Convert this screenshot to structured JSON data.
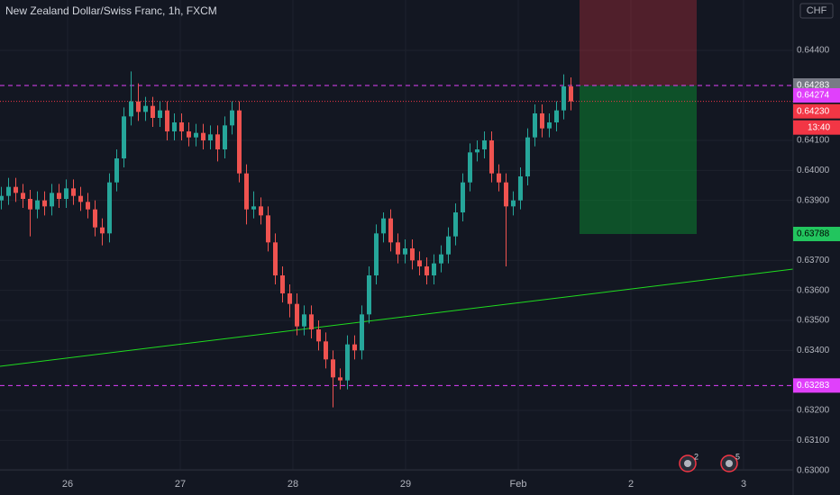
{
  "chart_data": {
    "type": "candlestick",
    "title": "New Zealand Dollar/Swiss Franc, 1h, FXCM",
    "currency": "CHF",
    "up_color": "#26a69a",
    "down_color": "#ef5350",
    "ylim": [
      0.63002,
      0.64568
    ],
    "yticks": [
      {
        "value": 0.63,
        "label": "0.63000"
      },
      {
        "value": 0.631,
        "label": "0.63100"
      },
      {
        "value": 0.632,
        "label": "0.63200"
      },
      {
        "value": 0.634,
        "label": "0.63400"
      },
      {
        "value": 0.635,
        "label": "0.63500"
      },
      {
        "value": 0.636,
        "label": "0.63600"
      },
      {
        "value": 0.637,
        "label": "0.63700"
      },
      {
        "value": 0.639,
        "label": "0.63900"
      },
      {
        "value": 0.64,
        "label": "0.64000"
      },
      {
        "value": 0.641,
        "label": "0.64100"
      },
      {
        "value": 0.644,
        "label": "0.64400"
      }
    ],
    "grid": true,
    "day_labels": [
      "26",
      "27",
      "28",
      "29",
      "Feb",
      "2",
      "3"
    ],
    "open": [
      0.639,
      0.63915,
      0.63945,
      0.63925,
      0.63905,
      0.6387,
      0.639,
      0.6388,
      0.63925,
      0.63905,
      0.6394,
      0.63915,
      0.63895,
      0.6387,
      0.6381,
      0.6379,
      0.6396,
      0.6404,
      0.6418,
      0.6423,
      0.64195,
      0.64215,
      0.64175,
      0.642,
      0.6413,
      0.6416,
      0.6413,
      0.6411,
      0.64125,
      0.641,
      0.6412,
      0.6407,
      0.6415,
      0.642,
      0.6399,
      0.6387,
      0.6388,
      0.6385,
      0.6376,
      0.6365,
      0.6359,
      0.63555,
      0.6348,
      0.6352,
      0.6347,
      0.6343,
      0.6337,
      0.6331,
      0.633,
      0.6342,
      0.634,
      0.6352,
      0.6365,
      0.6379,
      0.6384,
      0.6376,
      0.6372,
      0.6374,
      0.637,
      0.6368,
      0.6365,
      0.6369,
      0.6372,
      0.6378,
      0.6386,
      0.6396,
      0.6406,
      0.6407,
      0.641,
      0.6399,
      0.6396,
      0.6388,
      0.639,
      0.6398,
      0.6411,
      0.6419,
      0.6414,
      0.6416,
      0.642,
      0.6428
    ],
    "high": [
      0.63945,
      0.63975,
      0.63975,
      0.63955,
      0.63935,
      0.6393,
      0.6393,
      0.63955,
      0.63955,
      0.6397,
      0.6397,
      0.63945,
      0.63925,
      0.639,
      0.6384,
      0.6399,
      0.6407,
      0.6421,
      0.6433,
      0.6429,
      0.64245,
      0.64245,
      0.6423,
      0.6423,
      0.6419,
      0.6419,
      0.6416,
      0.64155,
      0.64155,
      0.6415,
      0.6415,
      0.6418,
      0.6423,
      0.6423,
      0.6402,
      0.6393,
      0.6391,
      0.6388,
      0.6379,
      0.6368,
      0.6362,
      0.6359,
      0.6355,
      0.6355,
      0.635,
      0.6346,
      0.634,
      0.6334,
      0.6345,
      0.6345,
      0.6355,
      0.6368,
      0.6382,
      0.6386,
      0.6387,
      0.6379,
      0.6377,
      0.6377,
      0.6373,
      0.6371,
      0.6372,
      0.6375,
      0.6381,
      0.6389,
      0.6399,
      0.6409,
      0.641,
      0.6413,
      0.6413,
      0.6402,
      0.6399,
      0.6393,
      0.6401,
      0.6414,
      0.6422,
      0.6422,
      0.6419,
      0.6423,
      0.6432,
      0.6431
    ],
    "low": [
      0.6387,
      0.63885,
      0.63895,
      0.63875,
      0.6378,
      0.6384,
      0.6385,
      0.6385,
      0.63875,
      0.63875,
      0.63885,
      0.63865,
      0.6384,
      0.6378,
      0.6375,
      0.6376,
      0.6393,
      0.6401,
      0.6415,
      0.64165,
      0.64165,
      0.64145,
      0.64145,
      0.641,
      0.641,
      0.641,
      0.6408,
      0.6408,
      0.6407,
      0.6407,
      0.6403,
      0.6404,
      0.6412,
      0.6396,
      0.6382,
      0.6384,
      0.6382,
      0.6373,
      0.6362,
      0.6356,
      0.6351,
      0.6345,
      0.6345,
      0.6344,
      0.634,
      0.6334,
      0.6321,
      0.6327,
      0.6327,
      0.6337,
      0.6337,
      0.6349,
      0.6362,
      0.6376,
      0.6373,
      0.6369,
      0.6369,
      0.6367,
      0.6365,
      0.6362,
      0.6362,
      0.6366,
      0.6369,
      0.6375,
      0.6383,
      0.6393,
      0.6403,
      0.6404,
      0.6396,
      0.6393,
      0.6368,
      0.6385,
      0.6387,
      0.6395,
      0.6408,
      0.6411,
      0.6411,
      0.6413,
      0.6417,
      0.642
    ],
    "close": [
      0.63915,
      0.63945,
      0.63925,
      0.63905,
      0.6387,
      0.639,
      0.6388,
      0.63925,
      0.63905,
      0.6394,
      0.63915,
      0.63895,
      0.6387,
      0.6381,
      0.6379,
      0.6396,
      0.6404,
      0.6418,
      0.6423,
      0.64195,
      0.64215,
      0.64175,
      0.642,
      0.6413,
      0.6416,
      0.6413,
      0.6411,
      0.64125,
      0.641,
      0.6412,
      0.6407,
      0.6415,
      0.642,
      0.6399,
      0.6387,
      0.6388,
      0.6385,
      0.6376,
      0.6365,
      0.6359,
      0.63555,
      0.6348,
      0.6352,
      0.6347,
      0.6343,
      0.6337,
      0.6331,
      0.633,
      0.6342,
      0.634,
      0.6352,
      0.6365,
      0.6379,
      0.6384,
      0.6376,
      0.6372,
      0.6374,
      0.637,
      0.6368,
      0.6365,
      0.6369,
      0.6372,
      0.6378,
      0.6386,
      0.6396,
      0.6406,
      0.6407,
      0.641,
      0.6399,
      0.6396,
      0.6388,
      0.639,
      0.6398,
      0.6411,
      0.6419,
      0.6414,
      0.6416,
      0.642,
      0.6428,
      0.6423
    ],
    "levels": [
      {
        "value": 0.64283,
        "color": "#e040fb"
      },
      {
        "value": 0.63283,
        "color": "#e040fb"
      }
    ],
    "alert": {
      "value": 0.64274,
      "color": "#e040fb"
    },
    "last_price": {
      "value": 0.6423,
      "label": "0.64230",
      "countdown": "13:40",
      "color": "#f23645"
    },
    "position": {
      "entry": 0.64283,
      "target": 0.63788,
      "target_color": "#22c55e"
    },
    "trendline": {
      "start": 0.63347,
      "end": 0.63671,
      "color": "#1fdc1f"
    },
    "events": [
      2,
      5
    ]
  }
}
